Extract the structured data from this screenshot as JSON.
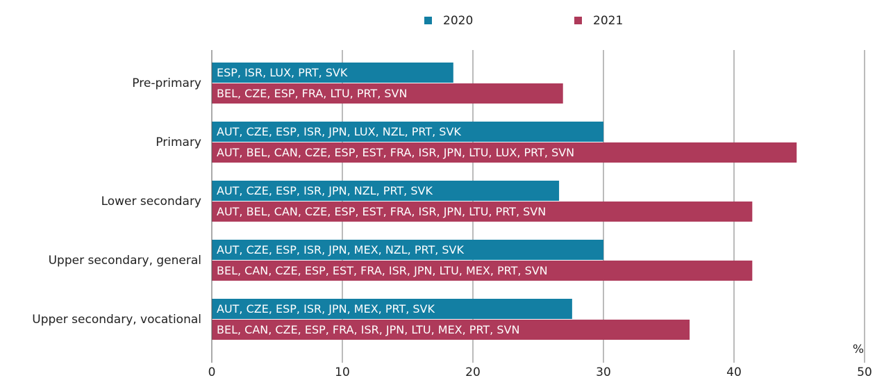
{
  "chart_data": {
    "type": "bar",
    "orientation": "horizontal",
    "categories": [
      "Pre-primary",
      "Primary",
      "Lower secondary",
      "Upper secondary, general",
      "Upper secondary, vocational"
    ],
    "series": [
      {
        "name": "2020",
        "color": "#137fa3",
        "values": [
          18.5,
          30,
          26.6,
          30,
          27.6
        ],
        "bar_labels": [
          "ESP, ISR, LUX, PRT, SVK",
          "AUT, CZE, ESP, ISR, JPN, LUX, NZL, PRT, SVK",
          "AUT, CZE, ESP, ISR, JPN, NZL, PRT, SVK",
          "AUT, CZE, ESP, ISR, JPN, MEX, NZL, PRT, SVK",
          "AUT, CZE, ESP, ISR, JPN, MEX, PRT, SVK"
        ]
      },
      {
        "name": "2021",
        "color": "#ae3a5a",
        "values": [
          26.9,
          44.8,
          41.4,
          41.4,
          36.6
        ],
        "bar_labels": [
          "BEL, CZE, ESP, FRA, LTU, PRT, SVN",
          "AUT, BEL, CAN, CZE, ESP, EST, FRA, ISR, JPN, LTU, LUX,  PRT, SVN",
          "AUT, BEL, CAN, CZE, ESP, EST, FRA, ISR, JPN, LTU, PRT, SVN",
          "BEL, CAN, CZE, ESP, EST, FRA, ISR, JPN, LTU, MEX, PRT, SVN",
          "BEL, CAN, CZE, ESP, FRA, ISR, JPN, LTU, MEX, PRT, SVN"
        ]
      }
    ],
    "x_unit": "%",
    "xlim": [
      0,
      50
    ],
    "xticks": [
      0,
      10,
      20,
      30,
      40,
      50
    ],
    "grid": true,
    "legend": "top"
  }
}
